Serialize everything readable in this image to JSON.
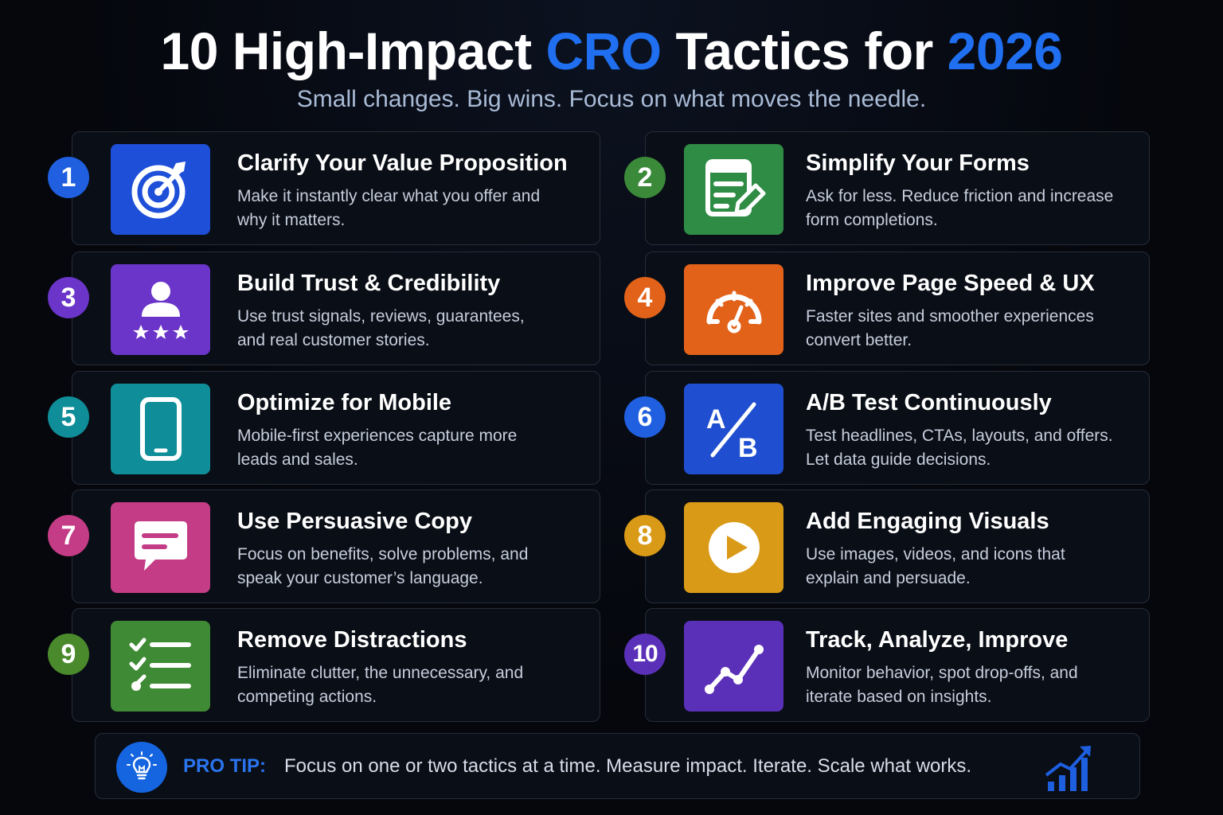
{
  "title": {
    "part1": "10 High-Impact ",
    "accent1": "CRO",
    "part2": " Tactics for ",
    "accent2": "2026"
  },
  "subtitle": "Small changes. Big wins. Focus on what moves the needle.",
  "tactics": [
    {
      "number": "1",
      "title": "Clarify Your Value Proposition",
      "desc": "Make it instantly clear what you offer and why it matters.",
      "icon": "target-icon",
      "color": "#1e4fd8",
      "badge": "#1f5fe0"
    },
    {
      "number": "2",
      "title": "Simplify Your Forms",
      "desc": "Ask for less. Reduce friction and increase form completions.",
      "icon": "form-edit-icon",
      "color": "#2f8c45",
      "badge": "#3a8a3a"
    },
    {
      "number": "3",
      "title": "Build Trust & Credibility",
      "desc": "Use trust signals, reviews, guarantees, and real customer stories.",
      "icon": "user-rating-icon",
      "color": "#6a35c8",
      "badge": "#6a35c8"
    },
    {
      "number": "4",
      "title": "Improve Page Speed & UX",
      "desc": "Faster sites and smoother experiences convert better.",
      "icon": "speedometer-icon",
      "color": "#e2621a",
      "badge": "#e2621a"
    },
    {
      "number": "5",
      "title": "Optimize for Mobile",
      "desc": "Mobile-first experiences capture more leads and sales.",
      "icon": "smartphone-icon",
      "color": "#0f8e99",
      "badge": "#0f8e99"
    },
    {
      "number": "6",
      "title": "A/B Test Continuously",
      "desc": "Test headlines, CTAs, layouts, and offers. Let data guide decisions.",
      "icon": "ab-test-icon",
      "color": "#1f4fd0",
      "badge": "#1f5fe0"
    },
    {
      "number": "7",
      "title": "Use Persuasive Copy",
      "desc": "Focus on benefits, solve problems, and speak your customer’s language.",
      "icon": "chat-bubble-icon",
      "color": "#c43b86",
      "badge": "#c43b86"
    },
    {
      "number": "8",
      "title": "Add Engaging Visuals",
      "desc": "Use images, videos, and icons that explain and persuade.",
      "icon": "play-icon",
      "color": "#d99a17",
      "badge": "#d99a17"
    },
    {
      "number": "9",
      "title": "Remove Distractions",
      "desc": "Eliminate clutter, the unnecessary, and competing actions.",
      "icon": "checklist-icon",
      "color": "#3f8a35",
      "badge": "#4b8a2c"
    },
    {
      "number": "10",
      "title": "Track, Analyze, Improve",
      "desc": "Monitor behavior, spot drop-offs, and iterate based on insights.",
      "icon": "trend-line-icon",
      "color": "#5a30b8",
      "badge": "#5a30b8"
    }
  ],
  "pro_tip": {
    "label": "PRO TIP:",
    "text": "Focus on one or two tactics at a time. Measure impact. Iterate. Scale what works.",
    "icon": "lightbulb-icon",
    "trailing_icon": "growth-chart-icon"
  }
}
